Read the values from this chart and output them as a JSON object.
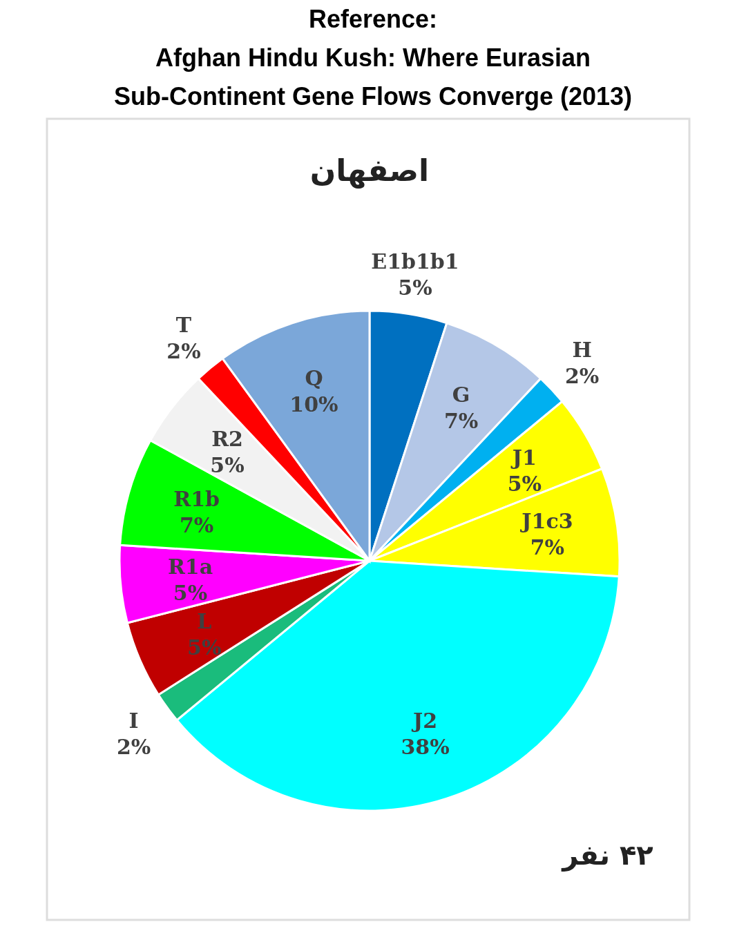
{
  "chart_data": {
    "type": "pie",
    "title": "Reference:\nAfghan Hindu Kush: Where Eurasian\nSub-Continent Gene Flows Converge (2013)",
    "subtitle": "اصفهان",
    "categories": [
      "E1b1b1",
      "G",
      "H",
      "J1",
      "J1c3",
      "J2",
      "I",
      "L",
      "R1a",
      "R1b",
      "R2",
      "T",
      "Q"
    ],
    "values": [
      5,
      7,
      2,
      5,
      7,
      38,
      2,
      5,
      5,
      7,
      5,
      2,
      10
    ],
    "colors": [
      "#0070c0",
      "#b4c7e7",
      "#00b0f0",
      "#ffff00",
      "#ffff00",
      "#00ffff",
      "#1abc7c",
      "#c00000",
      "#ff00ff",
      "#00ff00",
      "#f2f2f2",
      "#ff0000",
      "#7ba7d9"
    ],
    "value_labels": [
      "5%",
      "7%",
      "2%",
      "5%",
      "7%",
      "38%",
      "2%",
      "5%",
      "5%",
      "7%",
      "5%",
      "2%",
      "10%"
    ],
    "annotations": [
      "۴۲ نفر"
    ]
  }
}
